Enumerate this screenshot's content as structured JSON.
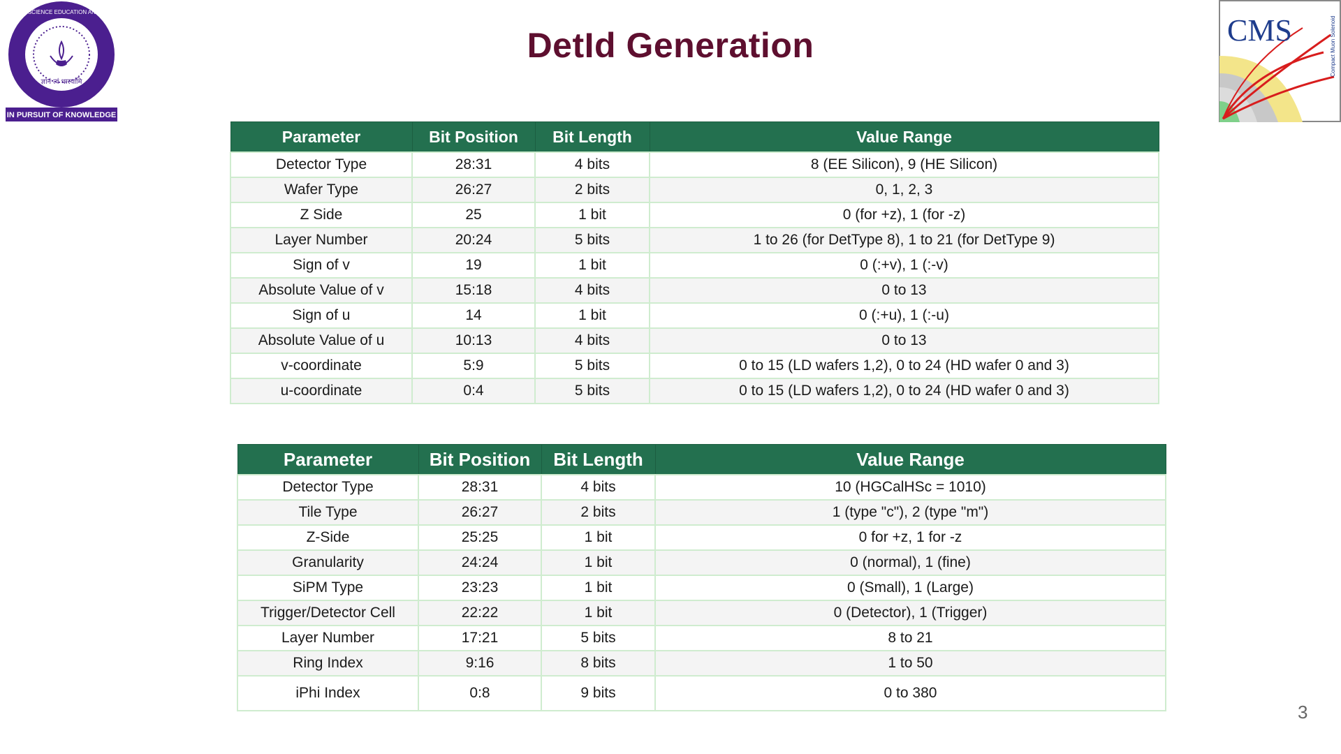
{
  "slide": {
    "title": "DetId Generation",
    "page_number": "3"
  },
  "logos": {
    "left": {
      "name": "iiser-mohali-logo",
      "ring_text": "INDIAN INSTITUTE OF SCIENCE EDUCATION AND RESEARCH MOHALI",
      "motto_hindi": "ज्ञानं त्वं धारयामि",
      "banner": "IN PURSUIT OF KNOWLEDGE"
    },
    "right": {
      "name": "cms-logo",
      "text": "CMS",
      "subtitle": "Compact Muon Solenoid"
    }
  },
  "table1": {
    "headers": [
      "Parameter",
      "Bit Position",
      "Bit Length",
      "Value Range"
    ],
    "rows": [
      [
        "Detector Type",
        "28:31",
        "4 bits",
        "8 (EE Silicon), 9 (HE Silicon)"
      ],
      [
        "Wafer Type",
        "26:27",
        "2 bits",
        "0, 1, 2, 3"
      ],
      [
        "Z Side",
        "25",
        "1 bit",
        "0 (for +z), 1 (for -z)"
      ],
      [
        "Layer Number",
        "20:24",
        "5 bits",
        "1 to 26 (for DetType 8), 1 to 21 (for DetType 9)"
      ],
      [
        "Sign of v",
        "19",
        "1 bit",
        "0 (:+v), 1 (:-v)"
      ],
      [
        "Absolute Value of v",
        "15:18",
        "4 bits",
        "0 to 13"
      ],
      [
        "Sign of u",
        "14",
        "1 bit",
        "0 (:+u), 1 (:-u)"
      ],
      [
        "Absolute Value of u",
        "10:13",
        "4 bits",
        "0 to 13"
      ],
      [
        "v-coordinate",
        "5:9",
        "5 bits",
        "0 to 15 (LD wafers 1,2), 0 to 24 (HD wafer 0 and 3)"
      ],
      [
        "u-coordinate",
        "0:4",
        "5 bits",
        "0 to 15 (LD wafers 1,2), 0 to 24 (HD wafer 0 and 3)"
      ]
    ]
  },
  "table2": {
    "headers": [
      "Parameter",
      "Bit Position",
      "Bit Length",
      "Value Range"
    ],
    "rows": [
      [
        "Detector Type",
        "28:31",
        "4 bits",
        "10 (HGCalHSc = 1010)"
      ],
      [
        "Tile Type",
        "26:27",
        "2 bits",
        "1 (type \"c\"), 2 (type \"m\")"
      ],
      [
        "Z-Side",
        "25:25",
        "1 bit",
        "0 for +z, 1 for -z"
      ],
      [
        "Granularity",
        "24:24",
        "1 bit",
        "0 (normal), 1 (fine)"
      ],
      [
        "SiPM Type",
        "23:23",
        "1 bit",
        "0 (Small), 1 (Large)"
      ],
      [
        "Trigger/Detector Cell",
        "22:22",
        "1 bit",
        "0 (Detector), 1 (Trigger)"
      ],
      [
        "Layer Number",
        "17:21",
        "5 bits",
        "8 to 21"
      ],
      [
        "Ring Index",
        "9:16",
        "8 bits",
        "1 to 50"
      ],
      [
        "iPhi Index",
        "0:8",
        "9 bits",
        "0 to 380"
      ]
    ]
  },
  "colors": {
    "title": "#5e0f2f",
    "header_bg": "#23704f",
    "grid": "#cfeccf",
    "logo_purple": "#4b1f8f"
  }
}
